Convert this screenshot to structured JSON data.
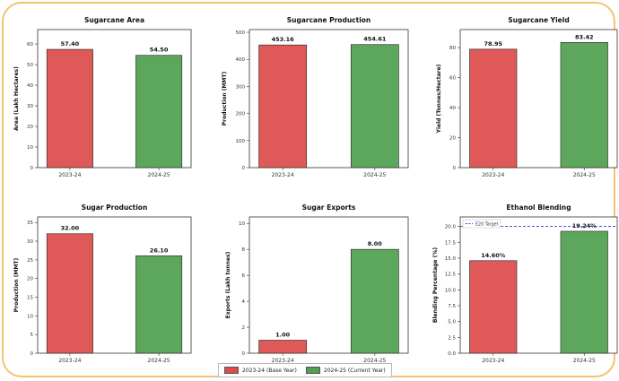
{
  "colors": {
    "base": "#dd4b4b",
    "current": "#4fa04f",
    "edge": "#333333",
    "target": "#3b3bd8"
  },
  "legend": {
    "base_label": "2023-24 (Base Year)",
    "current_label": "2024-25 (Current Year)"
  },
  "chart_data": [
    {
      "type": "bar",
      "title": "Sugarcane Area",
      "ylabel": "Area (Lakh Hectares)",
      "categories": [
        "2023-24",
        "2024-25"
      ],
      "values": [
        57.4,
        54.5
      ],
      "value_labels": [
        "57.40",
        "54.50"
      ],
      "ylim": [
        0,
        67
      ],
      "yticks": [
        0,
        10,
        20,
        30,
        40,
        50,
        60
      ],
      "ytick_labels": [
        "0",
        "10",
        "20",
        "30",
        "40",
        "50",
        "60"
      ]
    },
    {
      "type": "bar",
      "title": "Sugarcane Production",
      "ylabel": "Production (MMT)",
      "categories": [
        "2023-24",
        "2024-25"
      ],
      "values": [
        453.16,
        454.61
      ],
      "value_labels": [
        "453.16",
        "454.61"
      ],
      "ylim": [
        0,
        510
      ],
      "yticks": [
        0,
        100,
        200,
        300,
        400,
        500
      ],
      "ytick_labels": [
        "0",
        "100",
        "200",
        "300",
        "400",
        "500"
      ]
    },
    {
      "type": "bar",
      "title": "Sugarcane Yield",
      "ylabel": "Yield (Tonnes/Hectare)",
      "categories": [
        "2023-24",
        "2024-25"
      ],
      "values": [
        78.95,
        83.42
      ],
      "value_labels": [
        "78.95",
        "83.42"
      ],
      "ylim": [
        0,
        92
      ],
      "yticks": [
        0,
        20,
        40,
        60,
        80
      ],
      "ytick_labels": [
        "0",
        "20",
        "40",
        "60",
        "80"
      ]
    },
    {
      "type": "bar",
      "title": "Sugar Production",
      "ylabel": "Production (MMT)",
      "categories": [
        "2023-24",
        "2024-25"
      ],
      "values": [
        32.0,
        26.1
      ],
      "value_labels": [
        "32.00",
        "26.10"
      ],
      "ylim": [
        0,
        36.5
      ],
      "yticks": [
        0,
        5,
        10,
        15,
        20,
        25,
        30,
        35
      ],
      "ytick_labels": [
        "0",
        "5",
        "10",
        "15",
        "20",
        "25",
        "30",
        "35"
      ]
    },
    {
      "type": "bar",
      "title": "Sugar Exports",
      "ylabel": "Exports (Lakh tonnes)",
      "categories": [
        "2023-24",
        "2024-25"
      ],
      "values": [
        1.0,
        8.0
      ],
      "value_labels": [
        "1.00",
        "8.00"
      ],
      "ylim": [
        0,
        10.5
      ],
      "yticks": [
        0,
        2,
        4,
        6,
        8,
        10
      ],
      "ytick_labels": [
        "0",
        "2",
        "4",
        "6",
        "8",
        "10"
      ]
    },
    {
      "type": "bar",
      "title": "Ethanol Blending",
      "ylabel": "Blending Percentage (%)",
      "categories": [
        "2023-24",
        "2024-25"
      ],
      "values": [
        14.6,
        19.24
      ],
      "value_labels": [
        "14.60%",
        "19.24%"
      ],
      "ylim": [
        0,
        21.5
      ],
      "yticks": [
        0,
        2.5,
        5,
        7.5,
        10,
        12.5,
        15,
        17.5,
        20
      ],
      "ytick_labels": [
        "0.0",
        "2.5",
        "5.0",
        "7.5",
        "10.0",
        "12.5",
        "15.0",
        "17.5",
        "20.0"
      ],
      "target_value": 20,
      "target_label": "E20 Target"
    }
  ]
}
